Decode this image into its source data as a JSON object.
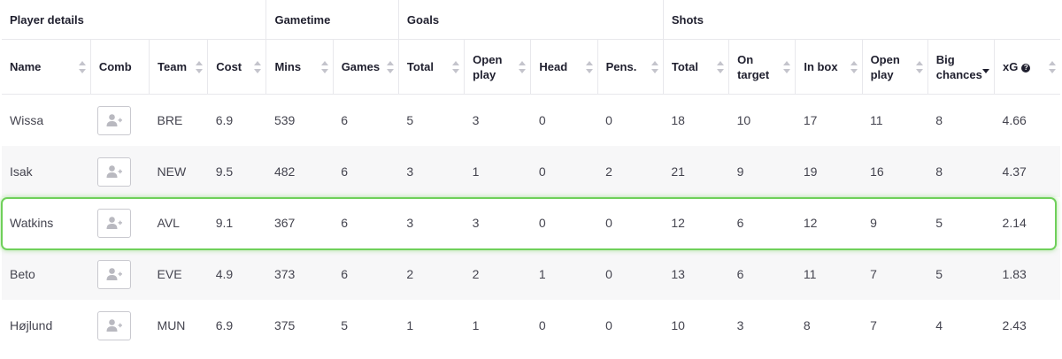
{
  "groups": [
    {
      "label": "Player details"
    },
    {
      "label": "Gametime"
    },
    {
      "label": "Goals"
    },
    {
      "label": "Shots"
    }
  ],
  "columns": [
    {
      "label": "Name",
      "sortable": true
    },
    {
      "label": "Comb",
      "sortable": false
    },
    {
      "label": "Team",
      "sortable": true
    },
    {
      "label": "Cost",
      "sortable": true
    },
    {
      "label": "Mins",
      "sortable": true
    },
    {
      "label": "Games",
      "sortable": true
    },
    {
      "label": "Total",
      "sortable": true
    },
    {
      "label": "Open play",
      "sortable": true
    },
    {
      "label": "Head",
      "sortable": true
    },
    {
      "label": "Pens.",
      "sortable": true
    },
    {
      "label": "Total",
      "sortable": true
    },
    {
      "label": "On target",
      "sortable": true
    },
    {
      "label": "In box",
      "sortable": true
    },
    {
      "label": "Open play",
      "sortable": true
    },
    {
      "label": "Big chances",
      "sortable": true,
      "sorted": "desc"
    },
    {
      "label": "xG",
      "sortable": true,
      "help_icon": "?"
    }
  ],
  "rows": [
    {
      "name": "Wissa",
      "team": "BRE",
      "cost": "6.9",
      "mins": "539",
      "games": "6",
      "goals_total": "5",
      "goals_open": "3",
      "goals_head": "0",
      "goals_pens": "0",
      "shots_total": "18",
      "shots_on_target": "10",
      "shots_in_box": "17",
      "shots_open": "11",
      "big_chances": "8",
      "xg": "4.66"
    },
    {
      "name": "Isak",
      "team": "NEW",
      "cost": "9.5",
      "mins": "482",
      "games": "6",
      "goals_total": "3",
      "goals_open": "1",
      "goals_head": "0",
      "goals_pens": "2",
      "shots_total": "21",
      "shots_on_target": "9",
      "shots_in_box": "19",
      "shots_open": "16",
      "big_chances": "8",
      "xg": "4.37"
    },
    {
      "name": "Watkins",
      "team": "AVL",
      "cost": "9.1",
      "mins": "367",
      "games": "6",
      "goals_total": "3",
      "goals_open": "3",
      "goals_head": "0",
      "goals_pens": "0",
      "shots_total": "12",
      "shots_on_target": "6",
      "shots_in_box": "12",
      "shots_open": "9",
      "big_chances": "5",
      "xg": "2.14",
      "highlighted": true
    },
    {
      "name": "Beto",
      "team": "EVE",
      "cost": "4.9",
      "mins": "373",
      "games": "6",
      "goals_total": "2",
      "goals_open": "2",
      "goals_head": "1",
      "goals_pens": "0",
      "shots_total": "13",
      "shots_on_target": "6",
      "shots_in_box": "11",
      "shots_open": "7",
      "big_chances": "5",
      "xg": "1.83"
    },
    {
      "name": "Højlund",
      "team": "MUN",
      "cost": "6.9",
      "mins": "375",
      "games": "5",
      "goals_total": "1",
      "goals_open": "1",
      "goals_head": "0",
      "goals_pens": "0",
      "shots_total": "10",
      "shots_on_target": "3",
      "shots_in_box": "8",
      "shots_open": "7",
      "big_chances": "4",
      "xg": "2.43"
    }
  ],
  "colors": {
    "highlight": "#6fd05a",
    "text": "#44444f",
    "header": "#1f1f2e",
    "stripe": "#f7f7f8"
  }
}
